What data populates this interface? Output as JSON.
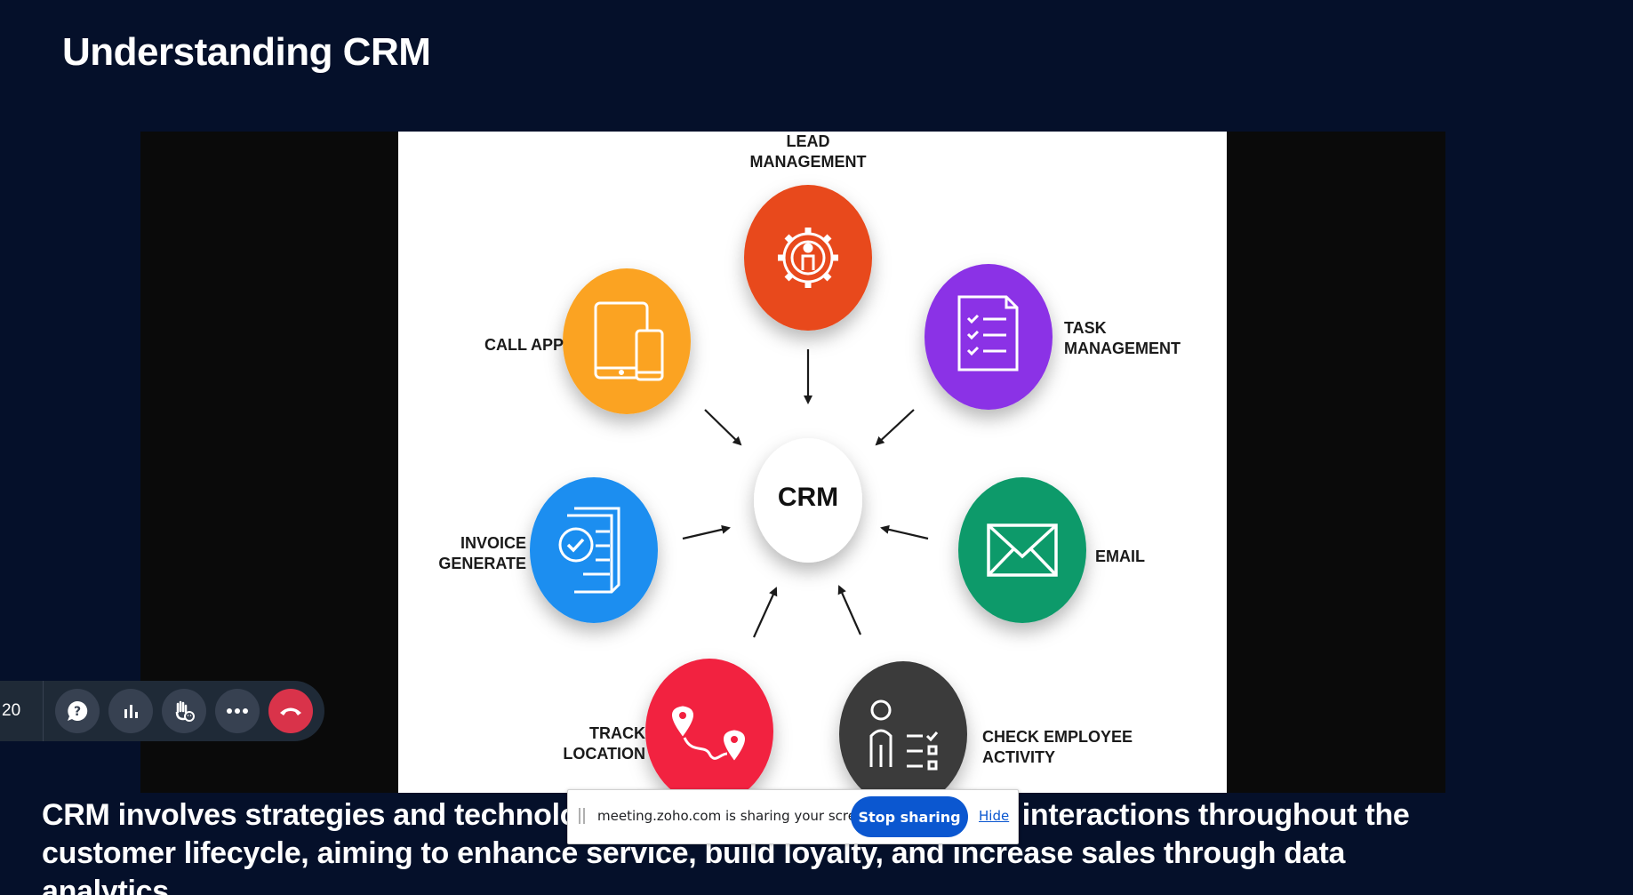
{
  "slide": {
    "title": "Understanding CRM",
    "caption": "CRM involves strategies and technologies used to manage customer interactions throughout the customer lifecycle, aiming to enhance service, build loyalty, and increase sales through data analytics."
  },
  "diagram": {
    "center": "CRM",
    "nodes": {
      "lead": {
        "label": "LEAD\nMANAGEMENT",
        "color": "#e8491b",
        "icon": "gear-person-icon"
      },
      "task": {
        "label": "TASK\nMANAGEMENT",
        "color": "#8b31e6",
        "icon": "checklist-icon"
      },
      "email": {
        "label": "EMAIL",
        "color": "#0e9a6a",
        "icon": "envelope-icon"
      },
      "employee": {
        "label": "CHECK EMPLOYEE\nACTIVITY",
        "color": "#3a3a3a",
        "icon": "person-checklist-icon"
      },
      "track": {
        "label": "TRACK\nLOCATION",
        "color": "#f2203f",
        "icon": "map-route-icon"
      },
      "invoice": {
        "label": "INVOICE\nGENERATE",
        "color": "#1a8ef0",
        "icon": "invoice-check-icon"
      },
      "call": {
        "label": "CALL APP",
        "color": "#fba321",
        "icon": "devices-icon"
      }
    }
  },
  "controls": {
    "timer": "20",
    "buttons": [
      "help-icon",
      "poll-icon",
      "raise-hand-icon",
      "more-icon",
      "end-call-icon"
    ],
    "end_color": "#d9334a"
  },
  "share_bar": {
    "message": "meeting.zoho.com is sharing your screen.",
    "stop_label": "Stop sharing",
    "hide_label": "Hide",
    "accent": "#0b57d0"
  }
}
